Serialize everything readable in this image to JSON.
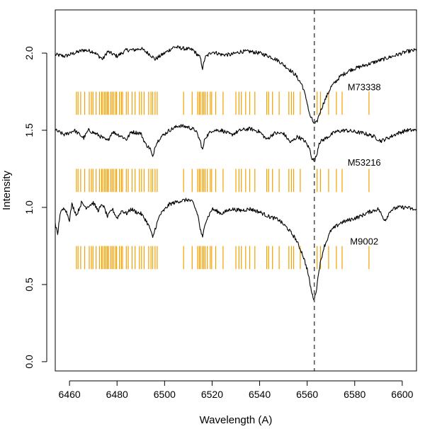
{
  "chart_data": {
    "type": "line",
    "title": "",
    "xlabel": "Wavelength (A)",
    "ylabel": "Intensity",
    "xlim": [
      6454,
      6606
    ],
    "ylim": [
      -0.06,
      2.28
    ],
    "xticks": [
      6460,
      6480,
      6500,
      6520,
      6540,
      6560,
      6580,
      6600
    ],
    "yticks": [
      0.0,
      0.5,
      1.0,
      1.5,
      2.0
    ],
    "xtick_labels": [
      "6460",
      "6480",
      "6500",
      "6520",
      "6540",
      "6560",
      "6580",
      "6600"
    ],
    "ytick_labels": [
      "0.0",
      "0.5",
      "1.0",
      "1.5",
      "2.0"
    ],
    "reference_line": {
      "x": 6563,
      "style": "dashed",
      "color": "#555555"
    },
    "line_color": "#000000",
    "marker_color": "#f2a100",
    "series": [
      {
        "name": "M73338",
        "baseline": 2.0,
        "label_pos": [
          6584,
          1.76
        ],
        "marker_band": [
          1.6,
          1.75
        ],
        "points": [
          [
            6454,
            1.99
          ],
          [
            6458,
            1.98
          ],
          [
            6462,
            2.0
          ],
          [
            6466,
            2.02
          ],
          [
            6470,
            2.01
          ],
          [
            6474,
            1.96
          ],
          [
            6476,
            2.01
          ],
          [
            6480,
            1.98
          ],
          [
            6484,
            2.02
          ],
          [
            6487,
            2.02
          ],
          [
            6490,
            2.03
          ],
          [
            6494,
            1.99
          ],
          [
            6496,
            1.96
          ],
          [
            6500,
            2.0
          ],
          [
            6504,
            2.04
          ],
          [
            6508,
            2.03
          ],
          [
            6512,
            2.02
          ],
          [
            6515,
            1.97
          ],
          [
            6516,
            1.9
          ],
          [
            6517,
            1.97
          ],
          [
            6520,
            2.01
          ],
          [
            6524,
            1.99
          ],
          [
            6528,
            1.99
          ],
          [
            6532,
            2.01
          ],
          [
            6536,
            2.01
          ],
          [
            6540,
            2.0
          ],
          [
            6544,
            1.98
          ],
          [
            6548,
            1.95
          ],
          [
            6552,
            1.9
          ],
          [
            6555,
            1.86
          ],
          [
            6558,
            1.79
          ],
          [
            6560,
            1.68
          ],
          [
            6561,
            1.6
          ],
          [
            6562,
            1.57
          ],
          [
            6563,
            1.54
          ],
          [
            6564,
            1.55
          ],
          [
            6565,
            1.6
          ],
          [
            6567,
            1.68
          ],
          [
            6570,
            1.78
          ],
          [
            6574,
            1.85
          ],
          [
            6578,
            1.89
          ],
          [
            6582,
            1.91
          ],
          [
            6586,
            1.93
          ],
          [
            6590,
            1.95
          ],
          [
            6594,
            1.97
          ],
          [
            6598,
            1.99
          ],
          [
            6602,
            2.01
          ],
          [
            6606,
            2.02
          ]
        ],
        "markers": [
          6462.9,
          6463.6,
          6464.7,
          6466.4,
          6468.3,
          6469.2,
          6469.9,
          6471.2,
          6472.6,
          6473.5,
          6474.0,
          6474.7,
          6475.3,
          6475.9,
          6476.4,
          6477.3,
          6477.9,
          6478.5,
          6479.3,
          6479.8,
          6481.0,
          6481.8,
          6482.3,
          6483.9,
          6484.7,
          6486.3,
          6487.6,
          6489.4,
          6490.3,
          6491.4,
          6493.3,
          6494.3,
          6495.0,
          6496.0,
          6496.9,
          6508.0,
          6511.6,
          6513.9,
          6514.6,
          6515.1,
          6515.9,
          6516.5,
          6517.1,
          6518.0,
          6519.2,
          6519.8,
          6521.5,
          6524.6,
          6530.0,
          6531.3,
          6532.3,
          6534.1,
          6535.8,
          6538.0,
          6543.0,
          6543.8,
          6545.4,
          6548.2,
          6552.3,
          6553.4,
          6554.3,
          6557.1,
          6564.2,
          6565.6,
          6569.0,
          6572.3,
          6574.7,
          6586.0
        ]
      },
      {
        "name": "M53216",
        "baseline": 1.5,
        "label_pos": [
          6584,
          1.27
        ],
        "marker_band": [
          1.1,
          1.25
        ],
        "points": [
          [
            6454,
            1.5
          ],
          [
            6458,
            1.47
          ],
          [
            6462,
            1.5
          ],
          [
            6466,
            1.45
          ],
          [
            6468,
            1.5
          ],
          [
            6472,
            1.47
          ],
          [
            6476,
            1.43
          ],
          [
            6478,
            1.49
          ],
          [
            6482,
            1.46
          ],
          [
            6484,
            1.44
          ],
          [
            6486,
            1.49
          ],
          [
            6490,
            1.48
          ],
          [
            6492,
            1.41
          ],
          [
            6494,
            1.38
          ],
          [
            6495,
            1.32
          ],
          [
            6496,
            1.4
          ],
          [
            6498,
            1.45
          ],
          [
            6502,
            1.5
          ],
          [
            6506,
            1.53
          ],
          [
            6510,
            1.52
          ],
          [
            6513,
            1.5
          ],
          [
            6515,
            1.43
          ],
          [
            6516,
            1.37
          ],
          [
            6517,
            1.45
          ],
          [
            6520,
            1.5
          ],
          [
            6524,
            1.5
          ],
          [
            6528,
            1.47
          ],
          [
            6532,
            1.5
          ],
          [
            6536,
            1.51
          ],
          [
            6540,
            1.49
          ],
          [
            6543,
            1.44
          ],
          [
            6546,
            1.48
          ],
          [
            6550,
            1.48
          ],
          [
            6553,
            1.42
          ],
          [
            6556,
            1.46
          ],
          [
            6559,
            1.43
          ],
          [
            6561,
            1.38
          ],
          [
            6562,
            1.32
          ],
          [
            6563,
            1.3
          ],
          [
            6564,
            1.34
          ],
          [
            6565,
            1.42
          ],
          [
            6567,
            1.44
          ],
          [
            6569,
            1.46
          ],
          [
            6572,
            1.49
          ],
          [
            6576,
            1.5
          ],
          [
            6580,
            1.49
          ],
          [
            6584,
            1.48
          ],
          [
            6588,
            1.46
          ],
          [
            6591,
            1.43
          ],
          [
            6594,
            1.45
          ],
          [
            6598,
            1.48
          ],
          [
            6602,
            1.5
          ],
          [
            6606,
            1.5
          ]
        ],
        "markers": [
          6462.9,
          6463.6,
          6464.7,
          6466.4,
          6468.3,
          6469.2,
          6469.9,
          6471.2,
          6472.6,
          6473.5,
          6474.0,
          6474.7,
          6475.3,
          6475.9,
          6476.4,
          6477.3,
          6477.9,
          6478.5,
          6479.3,
          6479.8,
          6481.0,
          6481.8,
          6482.3,
          6483.9,
          6484.7,
          6486.3,
          6487.6,
          6489.4,
          6490.3,
          6491.4,
          6493.3,
          6494.3,
          6495.0,
          6496.0,
          6496.9,
          6508.0,
          6511.6,
          6513.9,
          6514.6,
          6515.1,
          6515.9,
          6516.5,
          6517.1,
          6518.0,
          6519.2,
          6519.8,
          6521.5,
          6524.6,
          6530.0,
          6531.3,
          6532.3,
          6534.1,
          6535.8,
          6538.0,
          6543.0,
          6543.8,
          6545.4,
          6548.2,
          6552.3,
          6553.4,
          6554.3,
          6557.1,
          6564.2,
          6565.6,
          6569.0,
          6572.3,
          6574.7,
          6586.0
        ]
      },
      {
        "name": "M9002",
        "baseline": 1.0,
        "label_pos": [
          6584,
          0.76
        ],
        "marker_band": [
          0.6,
          0.75
        ],
        "points": [
          [
            6454,
            0.9
          ],
          [
            6455,
            0.82
          ],
          [
            6456,
            0.96
          ],
          [
            6458,
            1.0
          ],
          [
            6460,
            0.92
          ],
          [
            6461,
            1.02
          ],
          [
            6463,
            0.95
          ],
          [
            6465,
            1.03
          ],
          [
            6467,
            1.0
          ],
          [
            6470,
            1.03
          ],
          [
            6472,
            0.98
          ],
          [
            6474,
            1.02
          ],
          [
            6476,
            0.94
          ],
          [
            6478,
            0.99
          ],
          [
            6480,
            0.93
          ],
          [
            6482,
            0.98
          ],
          [
            6484,
            0.96
          ],
          [
            6486,
            0.99
          ],
          [
            6488,
            0.97
          ],
          [
            6490,
            0.96
          ],
          [
            6492,
            0.92
          ],
          [
            6494,
            0.86
          ],
          [
            6495,
            0.8
          ],
          [
            6496,
            0.86
          ],
          [
            6498,
            0.95
          ],
          [
            6502,
            1.02
          ],
          [
            6506,
            1.04
          ],
          [
            6510,
            1.05
          ],
          [
            6512,
            1.03
          ],
          [
            6514,
            0.95
          ],
          [
            6515,
            0.86
          ],
          [
            6516,
            0.8
          ],
          [
            6517,
            0.9
          ],
          [
            6520,
            0.99
          ],
          [
            6524,
            0.96
          ],
          [
            6528,
            0.99
          ],
          [
            6532,
            0.98
          ],
          [
            6536,
            0.99
          ],
          [
            6540,
            0.97
          ],
          [
            6544,
            0.94
          ],
          [
            6548,
            0.92
          ],
          [
            6552,
            0.86
          ],
          [
            6555,
            0.8
          ],
          [
            6558,
            0.7
          ],
          [
            6560,
            0.6
          ],
          [
            6561,
            0.52
          ],
          [
            6562,
            0.44
          ],
          [
            6563,
            0.4
          ],
          [
            6564,
            0.48
          ],
          [
            6565,
            0.6
          ],
          [
            6567,
            0.74
          ],
          [
            6570,
            0.85
          ],
          [
            6574,
            0.9
          ],
          [
            6578,
            0.92
          ],
          [
            6582,
            0.94
          ],
          [
            6586,
            0.97
          ],
          [
            6590,
            0.99
          ],
          [
            6592,
            0.93
          ],
          [
            6593,
            0.92
          ],
          [
            6595,
            0.98
          ],
          [
            6598,
            1.0
          ],
          [
            6602,
            1.0
          ],
          [
            6606,
            0.98
          ]
        ],
        "markers": [
          6462.9,
          6463.6,
          6464.7,
          6466.4,
          6468.3,
          6469.2,
          6469.9,
          6471.2,
          6472.6,
          6473.5,
          6474.0,
          6474.7,
          6475.3,
          6475.9,
          6476.4,
          6477.3,
          6477.9,
          6478.5,
          6479.3,
          6479.8,
          6481.0,
          6481.8,
          6482.3,
          6483.9,
          6484.7,
          6486.3,
          6487.6,
          6489.4,
          6490.3,
          6491.4,
          6493.3,
          6494.3,
          6495.0,
          6496.0,
          6496.9,
          6508.0,
          6511.6,
          6513.9,
          6514.6,
          6515.1,
          6515.9,
          6516.5,
          6517.1,
          6518.0,
          6519.2,
          6519.8,
          6521.5,
          6524.6,
          6530.0,
          6531.3,
          6532.3,
          6534.1,
          6535.8,
          6538.0,
          6543.0,
          6543.8,
          6545.4,
          6548.2,
          6552.3,
          6553.4,
          6554.3,
          6557.1,
          6564.2,
          6565.6,
          6569.0,
          6572.3,
          6574.7,
          6586.0
        ]
      }
    ]
  }
}
